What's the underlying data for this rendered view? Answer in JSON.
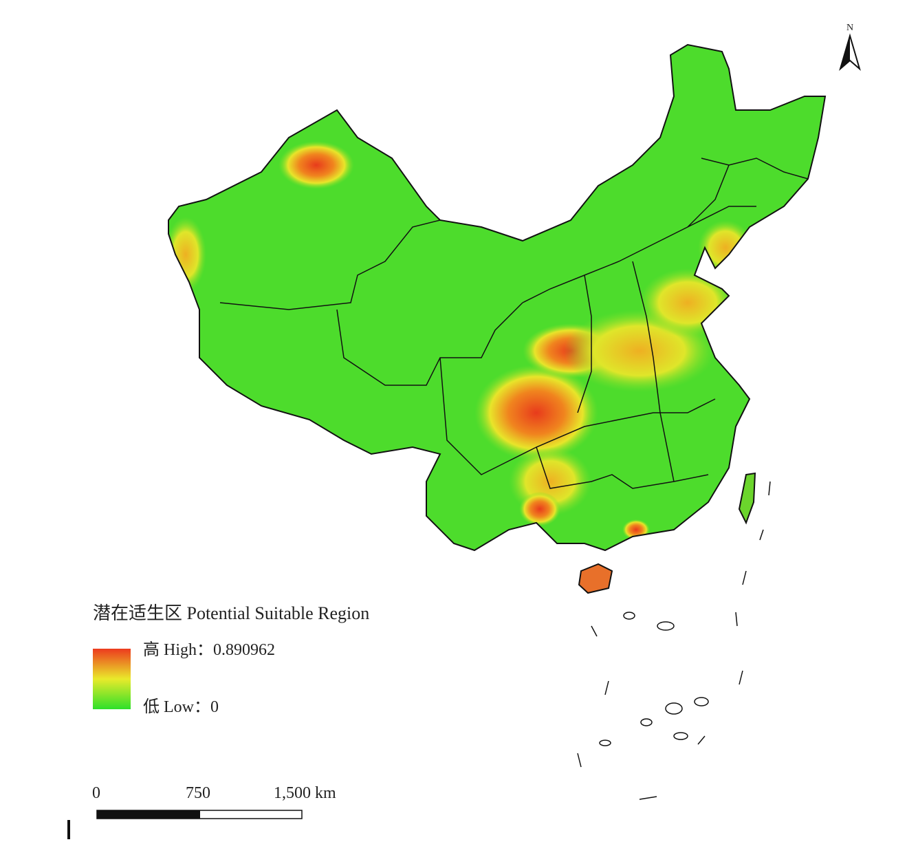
{
  "north_arrow": {
    "label": "N"
  },
  "legend": {
    "title": "潜在适生区 Potential Suitable Region",
    "high": "高 High：0.890962",
    "low": "低 Low：0"
  },
  "scale_bar": {
    "labels": [
      "0",
      "750",
      "1,500 km"
    ]
  }
}
